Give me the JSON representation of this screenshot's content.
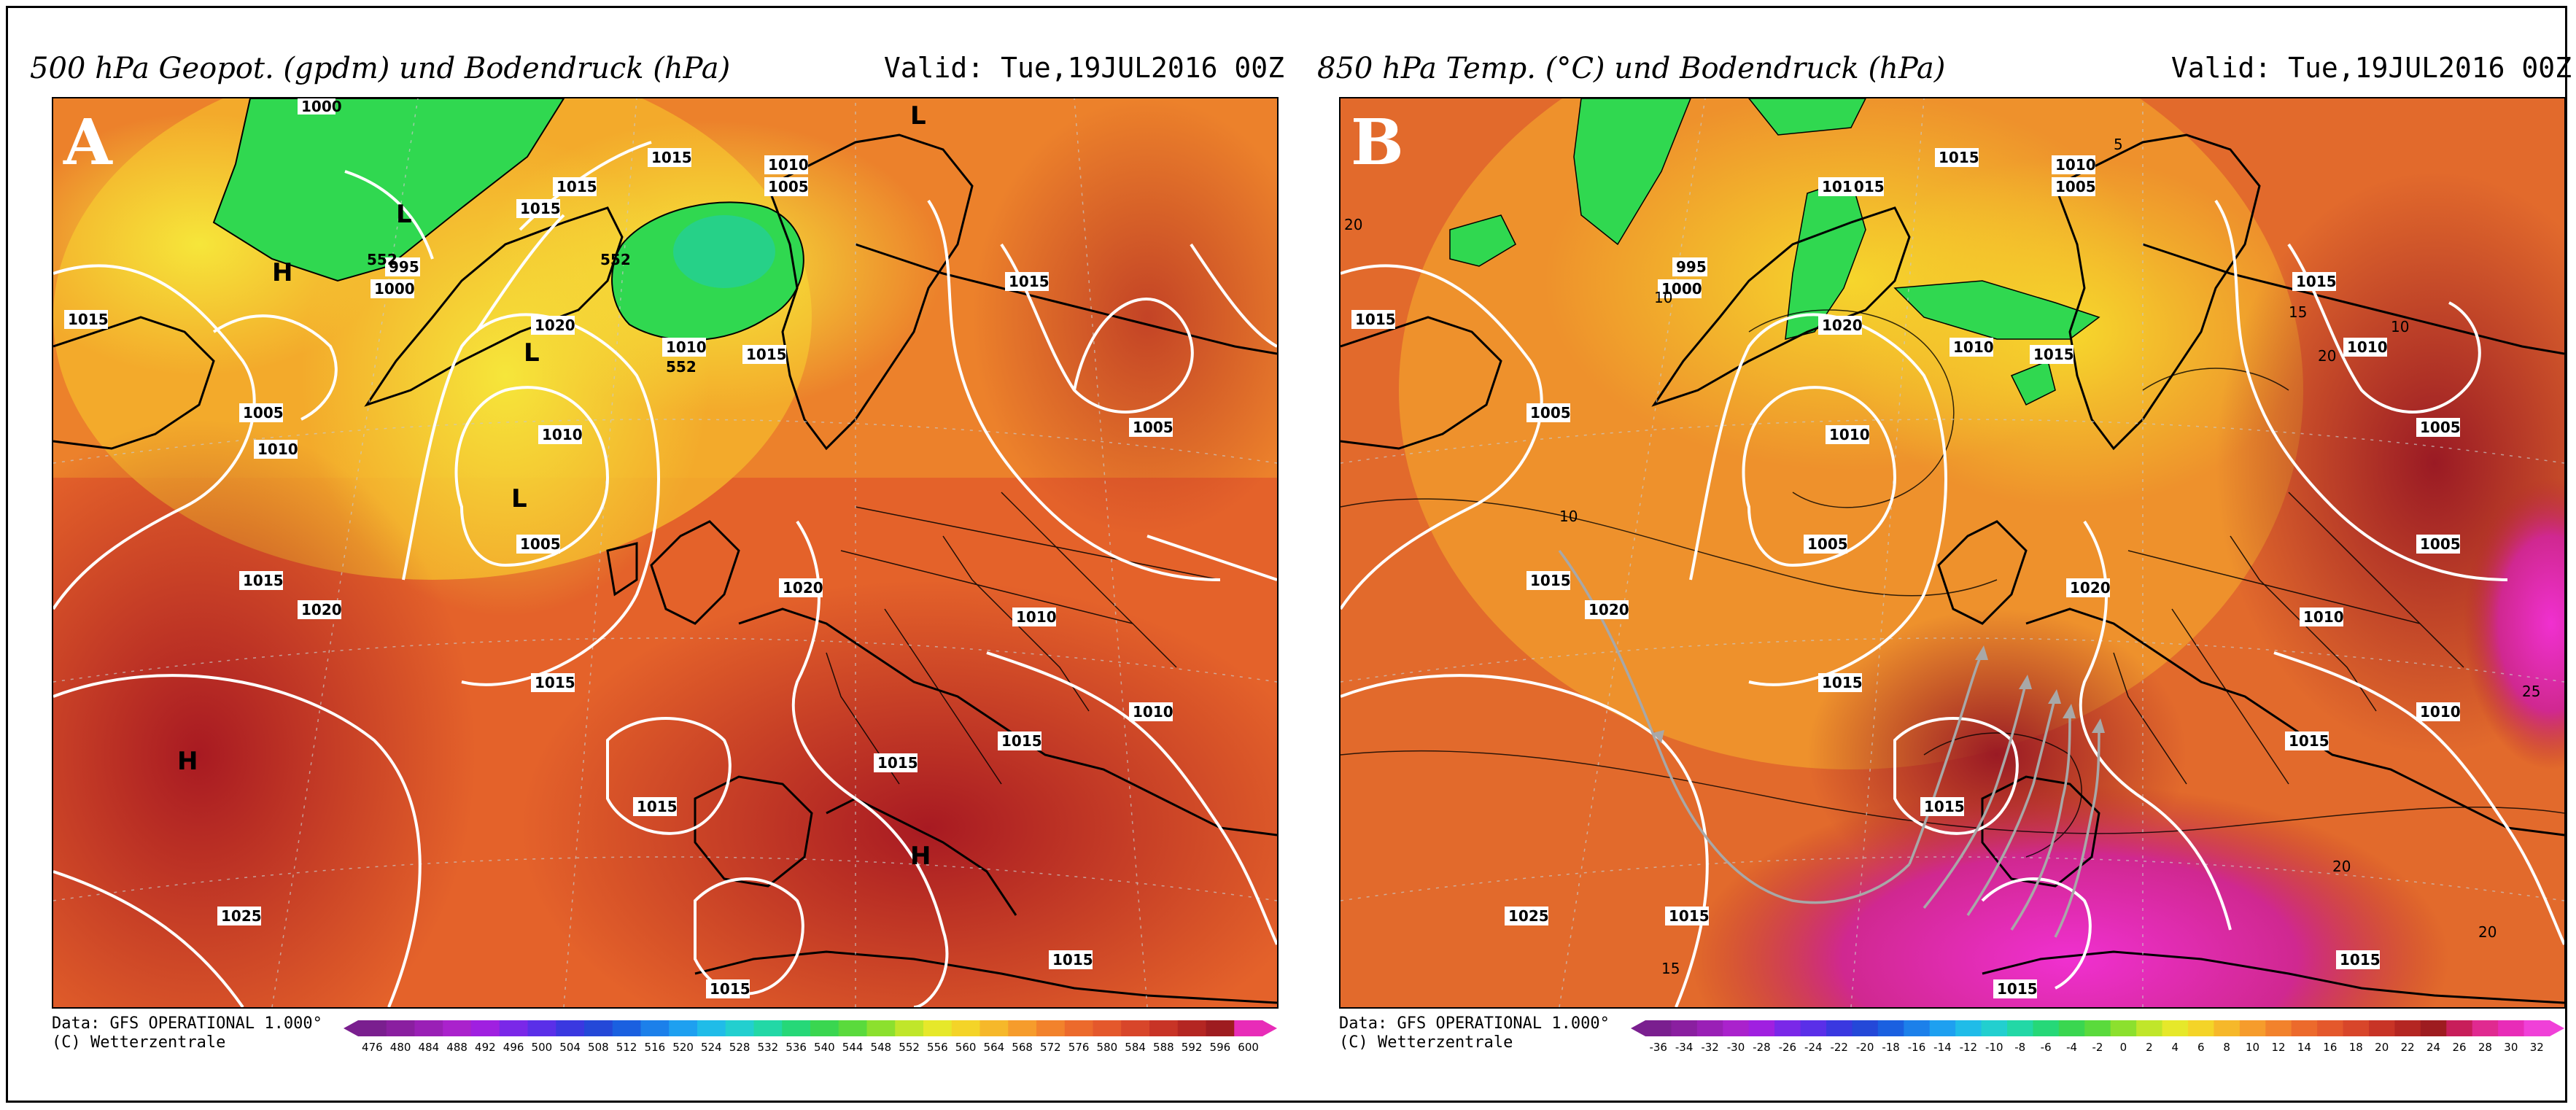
{
  "panels": [
    {
      "id": "A",
      "letter": "A",
      "title_left": "500 hPa Geopot. (gpdm) und Bodendruck (hPa)",
      "title_right": "Valid: Tue,19JUL2016 00Z",
      "source_line1": "Data: GFS OPERATIONAL 1.000°",
      "source_line2": "(C) Wetterzentrale",
      "colorbar_labels": [
        "476",
        "480",
        "484",
        "488",
        "492",
        "496",
        "500",
        "504",
        "508",
        "512",
        "516",
        "520",
        "524",
        "528",
        "532",
        "536",
        "540",
        "544",
        "548",
        "552",
        "556",
        "560",
        "564",
        "568",
        "572",
        "576",
        "580",
        "584",
        "588",
        "592",
        "596",
        "600"
      ],
      "colorbar_colors": [
        "#7a1f8f",
        "#8a1fa0",
        "#9a20b6",
        "#aa22cc",
        "#a020e0",
        "#7a28e8",
        "#5a2fe8",
        "#3a38e0",
        "#2448d8",
        "#1a60e0",
        "#1c80ea",
        "#1ea0f0",
        "#20bce8",
        "#22cfcf",
        "#22d8a6",
        "#26d878",
        "#3ad650",
        "#5ada3c",
        "#8ce02e",
        "#c0e62a",
        "#e6e82a",
        "#f4d428",
        "#f6b82a",
        "#f69c2c",
        "#f2822c",
        "#ec6a2c",
        "#e4582c",
        "#d8462a",
        "#c83426",
        "#b42622",
        "#9e1c20",
        "#e82cb8"
      ],
      "pressure_labels": [
        "1000",
        "1015",
        "1015",
        "1015",
        "1010",
        "1005",
        "1015",
        "1020",
        "1015",
        "995",
        "1000",
        "1010",
        "1015",
        "1005",
        "1010",
        "1010",
        "1005",
        "1005",
        "1015",
        "1020",
        "1015",
        "1010",
        "1010",
        "1015",
        "1020",
        "1015",
        "1015",
        "1025",
        "1015",
        "1015",
        "552",
        "552",
        "552"
      ],
      "center_labels": [
        "L",
        "L",
        "L",
        "L",
        "H",
        "H",
        "H"
      ]
    },
    {
      "id": "B",
      "letter": "B",
      "title_left": "850 hPa Temp. (°C) und Bodendruck (hPa)",
      "title_right": "Valid: Tue,19JUL2016 00Z",
      "source_line1": "Data: GFS OPERATIONAL 1.000°",
      "source_line2": "(C) Wetterzentrale",
      "colorbar_labels": [
        "-36",
        "-34",
        "-32",
        "-30",
        "-28",
        "-26",
        "-24",
        "-22",
        "-20",
        "-18",
        "-16",
        "-14",
        "-12",
        "-10",
        "-8",
        "-6",
        "-4",
        "-2",
        "0",
        "2",
        "4",
        "6",
        "8",
        "10",
        "12",
        "14",
        "16",
        "18",
        "20",
        "22",
        "24",
        "26",
        "28",
        "30",
        "32"
      ],
      "colorbar_colors": [
        "#7a1f8f",
        "#8a1fa0",
        "#9a20b6",
        "#aa22cc",
        "#a020e0",
        "#7a28e8",
        "#5a2fe8",
        "#3a38e0",
        "#2448d8",
        "#1a60e0",
        "#1c80ea",
        "#1ea0f0",
        "#20bce8",
        "#22cfcf",
        "#22d8a6",
        "#26d878",
        "#3ad650",
        "#5ada3c",
        "#8ce02e",
        "#c0e62a",
        "#e6e82a",
        "#f4d428",
        "#f6b82a",
        "#f69c2c",
        "#f2822c",
        "#ec6a2c",
        "#e4582c",
        "#d8462a",
        "#c83426",
        "#b42622",
        "#9e1c20",
        "#c81e5a",
        "#e02a90",
        "#e82cb8",
        "#f040d8"
      ],
      "pressure_labels": [
        "1015",
        "1015",
        "1015",
        "1010",
        "1005",
        "1015",
        "101",
        "995",
        "1000",
        "1020",
        "1010",
        "1015",
        "1010",
        "1010",
        "1005",
        "1005",
        "1005",
        "1005",
        "1015",
        "1020",
        "1015",
        "1010",
        "1010",
        "1015",
        "1020",
        "1015",
        "1015",
        "1025",
        "1015",
        "1015"
      ],
      "temp_labels": [
        "20",
        "10",
        "5",
        "10",
        "20",
        "15",
        "10",
        "20",
        "25",
        "20",
        "15"
      ]
    }
  ],
  "colors": {
    "frame": "#000000",
    "isobar": "#ffffff",
    "coast": "#000000",
    "arrow": "#a0a0a0"
  }
}
